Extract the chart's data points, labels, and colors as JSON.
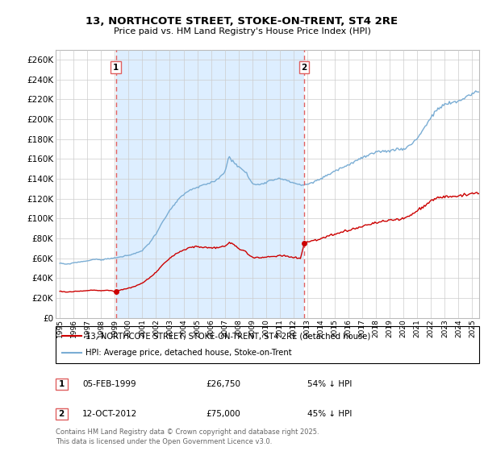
{
  "title": "13, NORTHCOTE STREET, STOKE-ON-TRENT, ST4 2RE",
  "subtitle": "Price paid vs. HM Land Registry's House Price Index (HPI)",
  "legend_line1": "13, NORTHCOTE STREET, STOKE-ON-TRENT, ST4 2RE (detached house)",
  "legend_line2": "HPI: Average price, detached house, Stoke-on-Trent",
  "sale1_label": "1",
  "sale1_date": "05-FEB-1999",
  "sale1_price": "£26,750",
  "sale1_hpi": "54% ↓ HPI",
  "sale2_label": "2",
  "sale2_date": "12-OCT-2012",
  "sale2_price": "£75,000",
  "sale2_hpi": "45% ↓ HPI",
  "sale1_year": 1999.08,
  "sale1_value": 26750,
  "sale2_year": 2012.78,
  "sale2_value": 75000,
  "vline1_year": 1999.08,
  "vline2_year": 2012.78,
  "red_color": "#cc0000",
  "blue_color": "#7aadd4",
  "vline_color": "#e06060",
  "grid_color": "#cccccc",
  "shade_color": "#ddeeff",
  "background_color": "#ffffff",
  "footer": "Contains HM Land Registry data © Crown copyright and database right 2025.\nThis data is licensed under the Open Government Licence v3.0.",
  "ylim": [
    0,
    270000
  ],
  "xlim_start": 1994.7,
  "xlim_end": 2025.5,
  "hpi_anchors": {
    "1995.0": 55000,
    "1995.5": 54000,
    "1996.0": 55500,
    "1996.5": 56500,
    "1997.0": 57500,
    "1997.5": 59000,
    "1998.0": 58500,
    "1998.5": 59500,
    "1999.0": 60500,
    "1999.5": 61500,
    "2000.0": 63000,
    "2000.5": 65000,
    "2001.0": 68000,
    "2001.5": 75000,
    "2002.0": 85000,
    "2002.5": 97000,
    "2003.0": 108000,
    "2003.5": 117000,
    "2004.0": 124000,
    "2004.5": 129000,
    "2005.0": 131000,
    "2005.5": 134000,
    "2006.0": 136000,
    "2006.5": 140000,
    "2007.0": 147000,
    "2007.3": 162000,
    "2007.6": 158000,
    "2008.0": 152000,
    "2008.5": 147000,
    "2008.8": 140000,
    "2009.0": 135000,
    "2009.5": 134000,
    "2010.0": 137000,
    "2010.5": 139000,
    "2011.0": 141000,
    "2011.5": 138000,
    "2012.0": 136000,
    "2012.5": 134000,
    "2013.0": 134000,
    "2013.5": 137000,
    "2014.0": 140000,
    "2014.5": 144000,
    "2015.0": 148000,
    "2015.5": 151000,
    "2016.0": 154000,
    "2016.5": 158000,
    "2017.0": 161000,
    "2017.5": 164000,
    "2018.0": 166000,
    "2018.5": 168000,
    "2019.0": 168000,
    "2019.5": 170000,
    "2020.0": 170000,
    "2020.5": 174000,
    "2021.0": 181000,
    "2021.5": 191000,
    "2022.0": 202000,
    "2022.5": 210000,
    "2023.0": 215000,
    "2023.5": 216000,
    "2024.0": 218000,
    "2024.5": 222000,
    "2025.0": 226000,
    "2025.5": 228000
  },
  "red_anchors": {
    "1995.0": 27000,
    "1995.5": 26000,
    "1996.0": 26500,
    "1996.5": 27000,
    "1997.0": 27500,
    "1997.5": 28000,
    "1998.0": 27500,
    "1998.5": 27800,
    "1999.08": 26750,
    "1999.5": 28500,
    "2000.0": 30000,
    "2000.5": 32000,
    "2001.0": 35000,
    "2001.5": 40000,
    "2002.0": 46000,
    "2002.5": 54000,
    "2003.0": 60000,
    "2003.5": 65000,
    "2004.0": 68000,
    "2004.5": 71000,
    "2005.0": 72000,
    "2005.5": 71000,
    "2006.0": 70000,
    "2006.5": 71000,
    "2007.0": 72000,
    "2007.3": 76000,
    "2007.6": 74000,
    "2008.0": 70000,
    "2008.5": 67000,
    "2008.8": 63000,
    "2009.0": 61000,
    "2009.5": 60500,
    "2010.0": 61000,
    "2010.5": 62000,
    "2011.0": 63000,
    "2011.5": 62000,
    "2012.0": 61000,
    "2012.5": 60000,
    "2012.78": 75000,
    "2013.0": 76500,
    "2013.5": 78000,
    "2014.0": 80000,
    "2014.5": 82000,
    "2015.0": 84000,
    "2015.5": 86000,
    "2016.0": 88000,
    "2016.5": 90000,
    "2017.0": 92000,
    "2017.5": 94000,
    "2018.0": 96000,
    "2018.5": 97000,
    "2019.0": 98000,
    "2019.5": 99000,
    "2020.0": 100000,
    "2020.5": 103000,
    "2021.0": 108000,
    "2021.5": 113000,
    "2022.0": 118000,
    "2022.5": 121000,
    "2023.0": 122000,
    "2023.5": 122500,
    "2024.0": 123000,
    "2024.5": 124000,
    "2025.0": 124500,
    "2025.5": 125000
  }
}
